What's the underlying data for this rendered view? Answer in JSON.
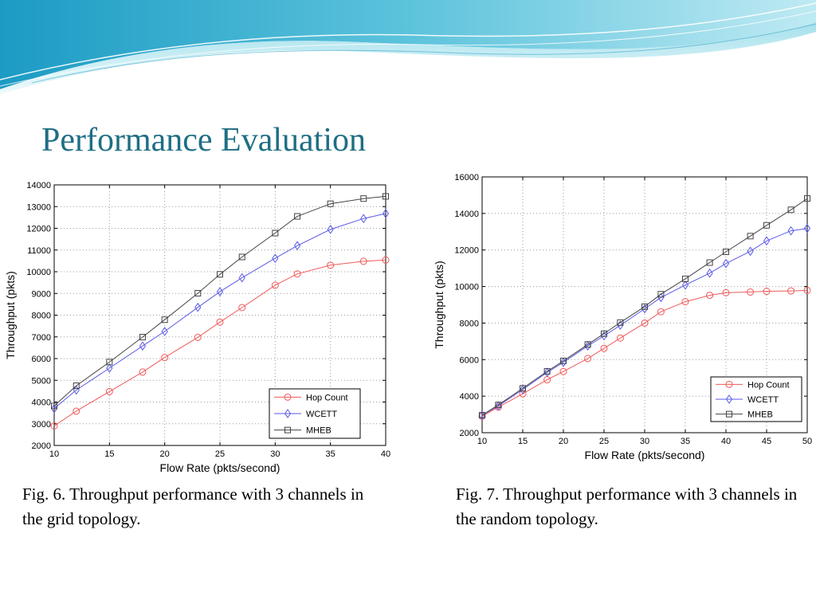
{
  "slide": {
    "title": "Performance Evaluation",
    "caption_1": "Fig. 6. Throughput performance with 3 channels in the grid topology.",
    "caption_2": "Fig. 7. Throughput performance with 3 channels in the random topology."
  },
  "theme": {
    "title_color": "#1e6e84",
    "wave_colors": [
      "#1c9bc4",
      "#7fd3e4",
      "#c9eef5"
    ]
  },
  "chart_data": [
    {
      "type": "line",
      "title": "",
      "xlabel": "Flow Rate (pkts/second)",
      "ylabel": "Throughput (pkts)",
      "xlim": [
        10,
        40
      ],
      "ylim": [
        2000,
        14000
      ],
      "xticks": [
        10,
        15,
        20,
        25,
        30,
        35,
        40
      ],
      "yticks": [
        2000,
        3000,
        4000,
        5000,
        6000,
        7000,
        8000,
        9000,
        10000,
        11000,
        12000,
        13000,
        14000
      ],
      "grid": true,
      "legend_position": "bottom-right",
      "x": [
        10,
        12,
        15,
        18,
        20,
        23,
        25,
        27,
        30,
        32,
        35,
        38,
        40
      ],
      "series": [
        {
          "name": "Hop Count",
          "color": "#f05a5a",
          "marker": "circle",
          "values": [
            2900,
            3580,
            4480,
            5380,
            6050,
            6980,
            7680,
            8350,
            9380,
            9900,
            10300,
            10480,
            10540
          ]
        },
        {
          "name": "WCETT",
          "color": "#5a5ae6",
          "marker": "diamond",
          "values": [
            3700,
            4550,
            5560,
            6580,
            7250,
            8360,
            9080,
            9720,
            10620,
            11200,
            11950,
            12450,
            12680
          ]
        },
        {
          "name": "MHEB",
          "color": "#444444",
          "marker": "square",
          "values": [
            3820,
            4750,
            5840,
            6990,
            7790,
            9010,
            9880,
            10680,
            11780,
            12550,
            13130,
            13370,
            13470
          ]
        }
      ]
    },
    {
      "type": "line",
      "title": "",
      "xlabel": "Flow Rate (pkts/second)",
      "ylabel": "Throughput (pkts)",
      "xlim": [
        10,
        50
      ],
      "ylim": [
        2000,
        16000
      ],
      "xticks": [
        10,
        15,
        20,
        25,
        30,
        35,
        40,
        45,
        50
      ],
      "yticks": [
        2000,
        4000,
        6000,
        8000,
        10000,
        12000,
        14000,
        16000
      ],
      "grid": true,
      "legend_position": "bottom-right",
      "x": [
        10,
        12,
        15,
        18,
        20,
        23,
        25,
        27,
        30,
        32,
        35,
        38,
        40,
        43,
        45,
        48,
        50
      ],
      "series": [
        {
          "name": "Hop Count",
          "color": "#f05a5a",
          "marker": "circle",
          "values": [
            2900,
            3400,
            4130,
            4900,
            5350,
            6060,
            6620,
            7180,
            8000,
            8620,
            9170,
            9520,
            9660,
            9700,
            9740,
            9760,
            9790
          ]
        },
        {
          "name": "WCETT",
          "color": "#5a5ae6",
          "marker": "diamond",
          "values": [
            2950,
            3470,
            4360,
            5300,
            5850,
            6750,
            7300,
            7880,
            8780,
            9400,
            10080,
            10730,
            11260,
            11930,
            12500,
            13050,
            13180
          ]
        },
        {
          "name": "MHEB",
          "color": "#444444",
          "marker": "square",
          "values": [
            2960,
            3520,
            4430,
            5360,
            5930,
            6830,
            7420,
            8030,
            8900,
            9580,
            10420,
            11310,
            11900,
            12760,
            13350,
            14200,
            14820
          ]
        }
      ]
    }
  ]
}
